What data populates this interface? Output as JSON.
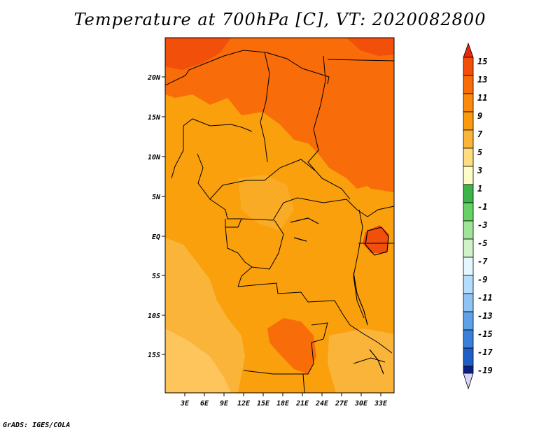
{
  "title": "Temperature at 700hPa [C], VT: 2020082800",
  "credit": "GrADS: IGES/COLA",
  "map": {
    "lat_labels": [
      "20N",
      "15N",
      "10N",
      "5N",
      "EQ",
      "5S",
      "10S",
      "15S"
    ],
    "lon_labels": [
      "3E",
      "6E",
      "9E",
      "12E",
      "15E",
      "18E",
      "21E",
      "24E",
      "27E",
      "30E",
      "33E"
    ]
  },
  "colorbar": {
    "labels": [
      "15",
      "13",
      "11",
      "9",
      "7",
      "5",
      "3",
      "1",
      "-1",
      "-3",
      "-5",
      "-7",
      "-9",
      "-11",
      "-13",
      "-15",
      "-17",
      "-19"
    ],
    "colors": [
      "#e8280c",
      "#f24f0a",
      "#f86c0a",
      "#fa9a0c",
      "#fbb43a",
      "#fddd80",
      "#fefdc8",
      "#3cb44a",
      "#66d164",
      "#a0e49a",
      "#cff2c9",
      "#e6f6ff",
      "#b4dcfb",
      "#8fc3f4",
      "#5da2e8",
      "#3a80d9",
      "#1f5fc5",
      "#1440a8",
      "#0c1f86",
      "#d6d6f8"
    ]
  },
  "colors": {
    "field_base": "#f9a00c",
    "field_warm": "#f86c0a",
    "field_hot": "#f24f0a",
    "field_cool": "#fbb43a",
    "field_pale": "#fdc55c"
  }
}
